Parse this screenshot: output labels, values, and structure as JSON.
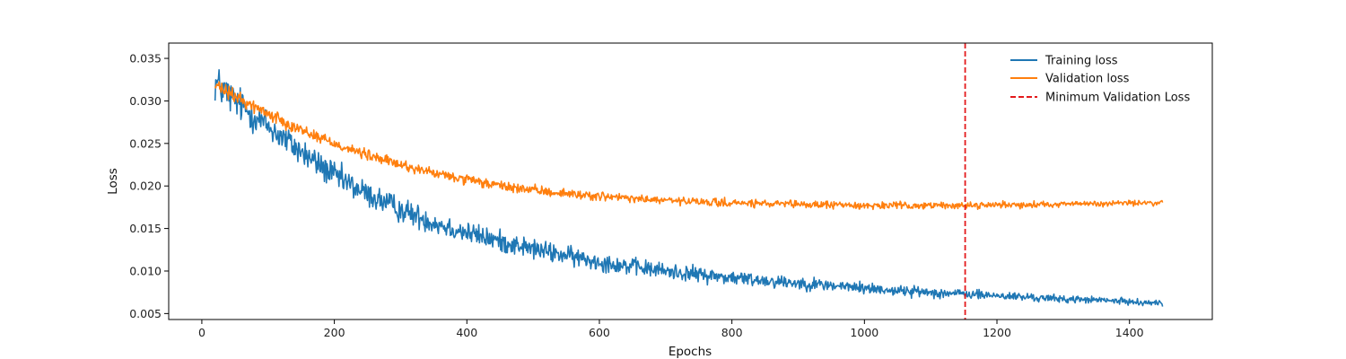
{
  "chart_data": {
    "type": "line",
    "title": "",
    "xlabel": "Epochs",
    "ylabel": "Loss",
    "xlim": [
      -50,
      1525
    ],
    "ylim": [
      0.0043,
      0.0368
    ],
    "xticks": [
      0,
      200,
      400,
      600,
      800,
      1000,
      1200,
      1400
    ],
    "yticks": [
      0.005,
      0.01,
      0.015,
      0.02,
      0.025,
      0.03,
      0.035
    ],
    "ytick_labels": [
      "0.005",
      "0.010",
      "0.015",
      "0.020",
      "0.025",
      "0.030",
      "0.035"
    ],
    "grid": false,
    "legend_position": "top-right",
    "series": [
      {
        "name": "Training loss",
        "color": "#1f77b4",
        "style": "solid",
        "x_start": 20,
        "x_end": 1450,
        "anchors_x": [
          20,
          50,
          100,
          150,
          200,
          250,
          300,
          350,
          400,
          450,
          500,
          550,
          600,
          650,
          700,
          750,
          800,
          850,
          900,
          950,
          1000,
          1050,
          1100,
          1150,
          1200,
          1250,
          1300,
          1350,
          1400,
          1450
        ],
        "anchors_y": [
          0.0322,
          0.03,
          0.027,
          0.024,
          0.0212,
          0.019,
          0.0172,
          0.0157,
          0.0145,
          0.0135,
          0.0126,
          0.0118,
          0.0111,
          0.0105,
          0.01,
          0.0096,
          0.0092,
          0.0089,
          0.0086,
          0.0083,
          0.008,
          0.0077,
          0.0075,
          0.0073,
          0.0071,
          0.0069,
          0.0067,
          0.0066,
          0.0064,
          0.0062
        ],
        "noise_start": 0.0022,
        "noise_end": 0.0003
      },
      {
        "name": "Validation loss",
        "color": "#ff7f0e",
        "style": "solid",
        "x_start": 20,
        "x_end": 1450,
        "anchors_x": [
          20,
          50,
          100,
          150,
          200,
          250,
          300,
          350,
          400,
          450,
          500,
          550,
          600,
          650,
          700,
          750,
          800,
          850,
          900,
          950,
          1000,
          1050,
          1100,
          1150,
          1200,
          1250,
          1300,
          1350,
          1400,
          1450
        ],
        "anchors_y": [
          0.0318,
          0.0305,
          0.0285,
          0.0266,
          0.025,
          0.0236,
          0.0225,
          0.0215,
          0.0207,
          0.02,
          0.0195,
          0.0191,
          0.0188,
          0.0185,
          0.0183,
          0.0181,
          0.018,
          0.0179,
          0.0178,
          0.0178,
          0.0177,
          0.0177,
          0.0177,
          0.0177,
          0.0178,
          0.0178,
          0.0179,
          0.0179,
          0.018,
          0.018
        ],
        "noise_start": 0.0008,
        "noise_end": 0.0003
      }
    ],
    "vline": {
      "name": "Minimum Validation Loss",
      "x": 1152,
      "color": "#e31a1c",
      "style": "dashed"
    }
  }
}
